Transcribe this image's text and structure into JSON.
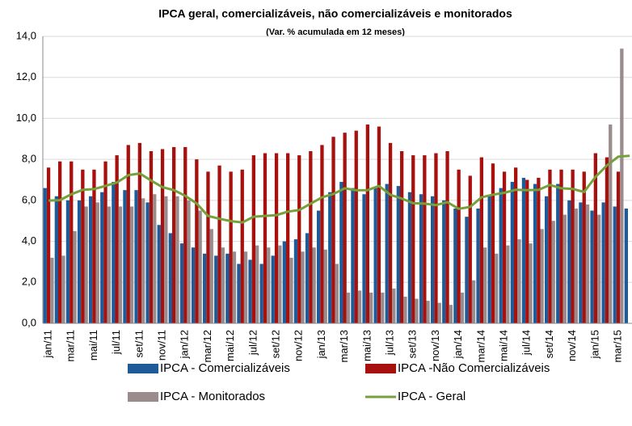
{
  "chart_data": {
    "type": "bar",
    "title": "IPCA geral, comercializáveis, não comercializáveis e monitorados",
    "subtitle": "(Var. % acumulada em 12 meses)",
    "categories": [
      "jan/11",
      null,
      "mar/11",
      null,
      "mai/11",
      null,
      "jul/11",
      null,
      "set/11",
      null,
      "nov/11",
      null,
      "jan/12",
      null,
      "mar/12",
      null,
      "mai/12",
      null,
      "jul/12",
      null,
      "set/12",
      null,
      "nov/12",
      null,
      "jan/13",
      null,
      "mar/13",
      null,
      "mai/13",
      null,
      "jul/13",
      null,
      "set/13",
      null,
      "nov/13",
      null,
      "jan/14",
      null,
      "mar/14",
      null,
      "mai/14",
      null,
      "jul/14",
      null,
      "set/14",
      null,
      "nov/14",
      null,
      "jan/15",
      null,
      "mar/15",
      null
    ],
    "series": [
      {
        "name": "IPCA - Comercializáveis",
        "color": "#1f5b98",
        "kind": "bar",
        "values": [
          6.6,
          6.2,
          6.0,
          6.0,
          6.2,
          6.4,
          6.9,
          6.5,
          6.5,
          5.9,
          4.8,
          4.4,
          3.9,
          3.7,
          3.4,
          3.3,
          3.4,
          2.9,
          3.1,
          2.9,
          3.3,
          4.0,
          4.1,
          4.4,
          5.5,
          6.4,
          6.9,
          6.6,
          6.3,
          6.6,
          6.8,
          6.7,
          6.4,
          6.3,
          6.2,
          6.0,
          5.6,
          5.2,
          5.6,
          6.2,
          6.6,
          6.9,
          7.1,
          6.8,
          6.2,
          6.8,
          6.0,
          5.9,
          5.5,
          5.9,
          5.7,
          5.6
        ]
      },
      {
        "name": "IPCA -Não Comercializáveis",
        "color": "#a8100e",
        "kind": "bar",
        "values": [
          7.6,
          7.9,
          7.9,
          7.5,
          7.5,
          7.9,
          8.2,
          8.7,
          8.8,
          8.4,
          8.5,
          8.6,
          8.6,
          8.0,
          7.4,
          7.7,
          7.4,
          7.5,
          8.2,
          8.3,
          8.3,
          8.3,
          8.2,
          8.4,
          8.7,
          9.1,
          9.3,
          9.4,
          9.7,
          9.6,
          8.8,
          8.4,
          8.2,
          8.2,
          8.3,
          8.4,
          7.5,
          7.2,
          8.1,
          7.8,
          7.4,
          7.6,
          7.0,
          7.1,
          7.5,
          7.5,
          7.5,
          7.4,
          8.3,
          8.1,
          7.4,
          null
        ]
      },
      {
        "name": "IPCA - Monitorados",
        "color": "#9a8c8c",
        "kind": "bar",
        "values": [
          3.2,
          3.3,
          4.5,
          5.7,
          5.9,
          5.7,
          5.7,
          5.7,
          6.1,
          6.3,
          6.2,
          6.2,
          6.0,
          5.5,
          4.6,
          3.7,
          3.5,
          3.5,
          3.8,
          3.7,
          3.8,
          3.2,
          3.5,
          3.7,
          3.6,
          2.9,
          1.5,
          1.6,
          1.5,
          1.5,
          1.7,
          1.3,
          1.2,
          1.1,
          1.0,
          0.9,
          1.5,
          2.1,
          3.7,
          3.4,
          3.8,
          4.1,
          3.9,
          4.6,
          5.0,
          5.3,
          5.6,
          5.8,
          5.3,
          9.7,
          13.4,
          null
        ]
      },
      {
        "name": "IPCA - Geral",
        "color": "#76a03a",
        "kind": "line",
        "values": [
          5.99,
          6.01,
          6.3,
          6.51,
          6.55,
          6.71,
          6.87,
          7.23,
          7.31,
          6.97,
          6.64,
          6.5,
          6.22,
          5.85,
          5.24,
          5.1,
          4.99,
          4.92,
          5.2,
          5.24,
          5.28,
          5.45,
          5.53,
          5.84,
          6.15,
          6.31,
          6.59,
          6.49,
          6.5,
          6.7,
          6.27,
          6.09,
          5.86,
          5.84,
          5.77,
          5.91,
          5.59,
          5.68,
          6.15,
          6.28,
          6.37,
          6.52,
          6.5,
          6.51,
          6.75,
          6.59,
          6.56,
          6.41,
          7.14,
          7.7,
          8.13,
          8.17
        ]
      }
    ],
    "ylim": [
      0,
      14
    ],
    "yticks": [
      {
        "value": 0,
        "label": "0,0"
      },
      {
        "value": 2,
        "label": "2,0"
      },
      {
        "value": 4,
        "label": "4,0"
      },
      {
        "value": 6,
        "label": "6,0"
      },
      {
        "value": 8,
        "label": "8,0"
      },
      {
        "value": 10,
        "label": "10,0"
      },
      {
        "value": 12,
        "label": "12,0"
      },
      {
        "value": 14,
        "label": "14,0"
      }
    ],
    "grid": true
  }
}
